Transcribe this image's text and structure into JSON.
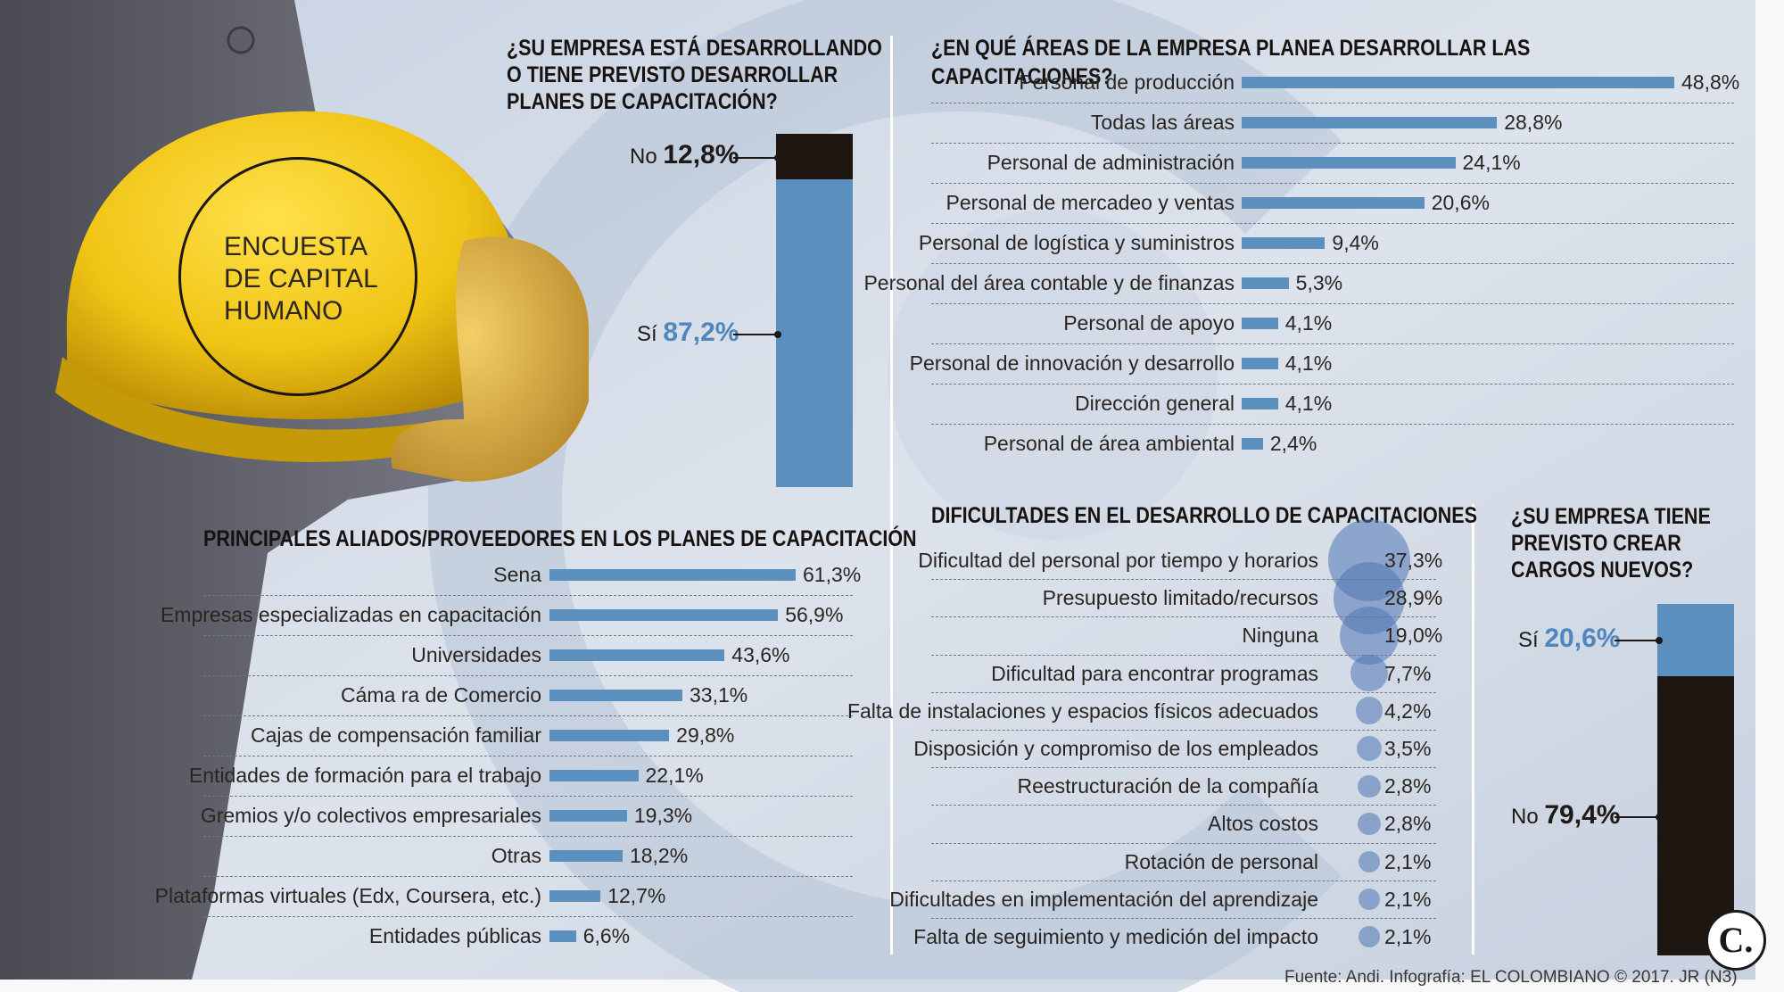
{
  "colors": {
    "bar": "#5b8fbd",
    "dark": "#1c1510",
    "helmet": "#f1c515",
    "accent_text": "#4f86bd"
  },
  "helmet_badge": {
    "line1": "ENCUESTA",
    "line2": "DE CAPITAL",
    "line3": "HUMANO"
  },
  "q_plans": {
    "title_l1": "¿SU EMPRESA ESTÁ DESARROLLANDO",
    "title_l2": "O TIENE PREVISTO DESARROLLAR",
    "title_l3": "PLANES DE CAPACITACIÓN?",
    "no_label": "No",
    "no_value": "12,8%",
    "no_share": 12.8,
    "si_label": "Sí",
    "si_value": "87,2%",
    "si_share": 87.2
  },
  "q_new_roles": {
    "title_l1": "¿SU EMPRESA TIENE",
    "title_l2": "PREVISTO CREAR",
    "title_l3": "CARGOS NUEVOS?",
    "si_label": "Sí",
    "si_value": "20,6%",
    "si_share": 20.6,
    "no_label": "No",
    "no_value": "79,4%",
    "no_share": 79.4
  },
  "chart_data": [
    {
      "type": "bar",
      "orientation": "horizontal",
      "title": "¿EN QUÉ ÁREAS DE LA EMPRESA PLANEA DESARROLLAR LAS CAPACITACIONES?",
      "categories": [
        "Personal de producción",
        "Todas las áreas",
        "Personal de administración",
        "Personal de mercadeo y ventas",
        "Personal de logística y suministros",
        "Personal del área contable y de finanzas",
        "Personal de apoyo",
        "Personal de innovación y desarrollo",
        "Dirección general",
        "Personal de área ambiental"
      ],
      "values": [
        48.8,
        28.8,
        24.1,
        20.6,
        9.4,
        5.3,
        4.1,
        4.1,
        4.1,
        2.4
      ],
      "labels": [
        "48,8%",
        "28,8%",
        "24,1%",
        "20,6%",
        "9,4%",
        "5,3%",
        "4,1%",
        "4,1%",
        "4,1%",
        "2,4%"
      ]
    },
    {
      "type": "bar",
      "orientation": "horizontal",
      "title": "PRINCIPALES ALIADOS/PROVEEDORES EN LOS PLANES DE CAPACITACIÓN",
      "categories": [
        "Sena",
        "Empresas especializadas en capacitación",
        "Universidades",
        "Cáma ra de Comercio",
        "Cajas de compensación familiar",
        "Entidades de formación para el trabajo",
        "Gremios y/o colectivos empresariales",
        "Otras",
        "Plataformas virtuales (Edx, Coursera, etc.)",
        "Entidades públicas"
      ],
      "values": [
        61.3,
        56.9,
        43.6,
        33.1,
        29.8,
        22.1,
        19.3,
        18.2,
        12.7,
        6.6
      ],
      "labels": [
        "61,3%",
        "56,9%",
        "43,6%",
        "33,1%",
        "29,8%",
        "22,1%",
        "19,3%",
        "18,2%",
        "12,7%",
        "6,6%"
      ]
    },
    {
      "type": "scatter",
      "encoding": "bubble size",
      "title": "DIFICULTADES EN EL DESARROLLO DE CAPACITACIONES",
      "categories": [
        "Dificultad del personal por tiempo y horarios",
        "Presupuesto limitado/recursos",
        "Ninguna",
        "Dificultad para encontrar programas",
        "Falta de instalaciones y espacios físicos adecuados",
        "Disposición y compromiso de los empleados",
        "Reestructuración de la compañía",
        "Altos costos",
        "Rotación de personal",
        "Dificultades en implementación del aprendizaje",
        "Falta de seguimiento y medición del impacto"
      ],
      "values": [
        37.3,
        28.9,
        19.0,
        7.7,
        4.2,
        3.5,
        2.8,
        2.8,
        2.1,
        2.1,
        2.1
      ],
      "labels": [
        "37,3%",
        "28,9%",
        "19,0%",
        "7,7%",
        "4,2%",
        "3,5%",
        "2,8%",
        "2,8%",
        "2,1%",
        "2,1%",
        "2,1%"
      ]
    },
    {
      "type": "bar",
      "stacked": true,
      "title": "¿SU EMPRESA ESTÁ DESARROLLANDO O TIENE PREVISTO DESARROLLAR PLANES DE CAPACITACIÓN?",
      "categories": [
        "No",
        "Sí"
      ],
      "values": [
        12.8,
        87.2
      ]
    },
    {
      "type": "bar",
      "stacked": true,
      "title": "¿SU EMPRESA TIENE PREVISTO CREAR CARGOS NUEVOS?",
      "categories": [
        "Sí",
        "No"
      ],
      "values": [
        20.6,
        79.4
      ]
    }
  ],
  "footer": {
    "source": "Fuente: Andi. Infografía: EL COLOMBIANO © 2017. JR (N3)",
    "logo_letter": "C."
  }
}
